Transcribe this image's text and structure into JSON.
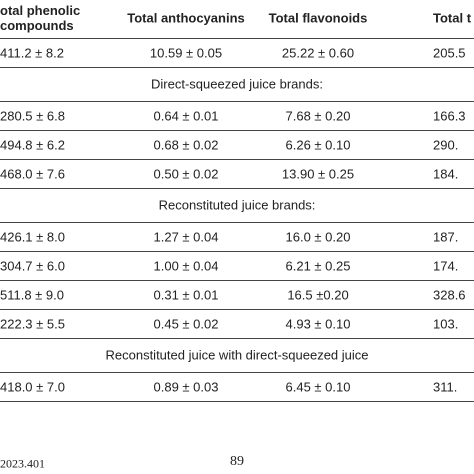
{
  "table": {
    "header": [
      "otal phenolic\ncompounds",
      "Total anthocyanins",
      "Total flavonoids",
      "Total t"
    ],
    "rows": [
      {
        "cells": [
          "411.2 ± 8.2",
          "10.59 ± 0.05",
          "25.22 ± 0.60",
          "205.5"
        ]
      },
      {
        "section": "Direct-squeezed juice brands:"
      },
      {
        "cells": [
          "280.5 ± 6.8",
          "0.64 ± 0.01",
          "7.68 ± 0.20",
          "166.3"
        ]
      },
      {
        "cells": [
          "494.8 ± 6.2",
          "0.68 ± 0.02",
          "6.26 ± 0.10",
          "290."
        ]
      },
      {
        "cells": [
          "468.0 ± 7.6",
          "0.50 ± 0.02",
          "13.90 ± 0.25",
          "184."
        ]
      },
      {
        "section": "Reconstituted juice brands:"
      },
      {
        "cells": [
          "426.1 ± 8.0",
          "1.27 ± 0.04",
          "16.0 ± 0.20",
          "187."
        ]
      },
      {
        "cells": [
          "304.7 ± 6.0",
          "1.00 ± 0.04",
          "6.21 ± 0.25",
          "174."
        ]
      },
      {
        "cells": [
          "511.8 ± 9.0",
          "0.31 ± 0.01",
          "16.5 ±0.20",
          "328.6"
        ]
      },
      {
        "cells": [
          "222.3 ± 5.5",
          "0.45 ± 0.02",
          "4.93 ± 0.10",
          "103."
        ]
      },
      {
        "section": "Reconstituted juice with direct-squeezed juice"
      },
      {
        "cells": [
          "418.0 ± 7.0",
          "0.89 ± 0.03",
          "6.45 ± 0.10",
          "311."
        ]
      }
    ]
  },
  "footer": {
    "left": "2023.401",
    "page": "89"
  }
}
